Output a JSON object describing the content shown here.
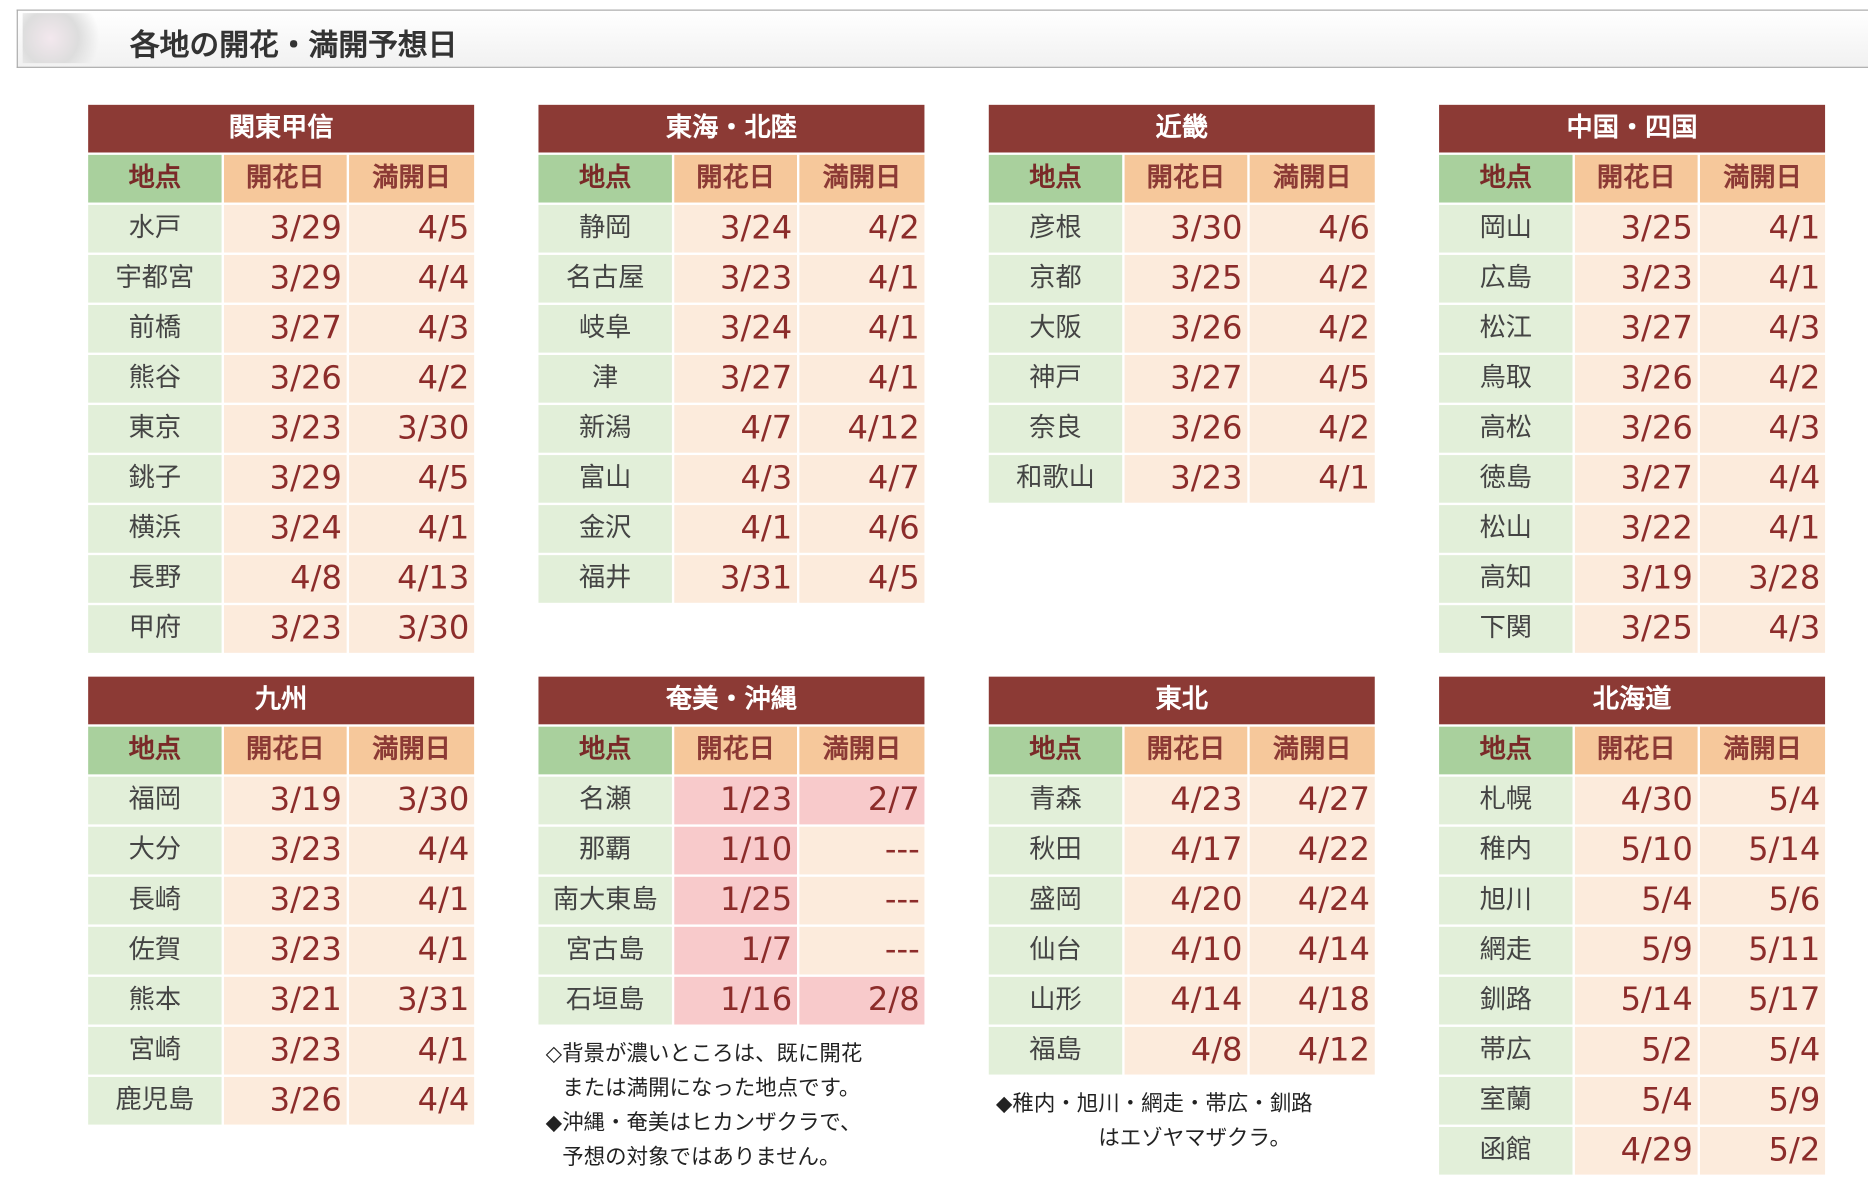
{
  "header": {
    "title": "各地の開花・満開予想日"
  },
  "columns": [
    "地点",
    "開花日",
    "満開日"
  ],
  "regions": [
    {
      "name": "関東甲信",
      "rows": [
        [
          "水戸",
          "3/29",
          "4/5"
        ],
        [
          "宇都宮",
          "3/29",
          "4/4"
        ],
        [
          "前橋",
          "3/27",
          "4/3"
        ],
        [
          "熊谷",
          "3/26",
          "4/2"
        ],
        [
          "東京",
          "3/23",
          "3/30"
        ],
        [
          "銚子",
          "3/29",
          "4/5"
        ],
        [
          "横浜",
          "3/24",
          "4/1"
        ],
        [
          "長野",
          "4/8",
          "4/13"
        ],
        [
          "甲府",
          "3/23",
          "3/30"
        ]
      ]
    },
    {
      "name": "東海・北陸",
      "rows": [
        [
          "静岡",
          "3/24",
          "4/2"
        ],
        [
          "名古屋",
          "3/23",
          "4/1"
        ],
        [
          "岐阜",
          "3/24",
          "4/1"
        ],
        [
          "津",
          "3/27",
          "4/1"
        ],
        [
          "新潟",
          "4/7",
          "4/12"
        ],
        [
          "富山",
          "4/3",
          "4/7"
        ],
        [
          "金沢",
          "4/1",
          "4/6"
        ],
        [
          "福井",
          "3/31",
          "4/5"
        ]
      ]
    },
    {
      "name": "近畿",
      "rows": [
        [
          "彦根",
          "3/30",
          "4/6"
        ],
        [
          "京都",
          "3/25",
          "4/2"
        ],
        [
          "大阪",
          "3/26",
          "4/2"
        ],
        [
          "神戸",
          "3/27",
          "4/5"
        ],
        [
          "奈良",
          "3/26",
          "4/2"
        ],
        [
          "和歌山",
          "3/23",
          "4/1"
        ]
      ]
    },
    {
      "name": "中国・四国",
      "rows": [
        [
          "岡山",
          "3/25",
          "4/1"
        ],
        [
          "広島",
          "3/23",
          "4/1"
        ],
        [
          "松江",
          "3/27",
          "4/3"
        ],
        [
          "鳥取",
          "3/26",
          "4/2"
        ],
        [
          "高松",
          "3/26",
          "4/3"
        ],
        [
          "徳島",
          "3/27",
          "4/4"
        ],
        [
          "松山",
          "3/22",
          "4/1"
        ],
        [
          "高知",
          "3/19",
          "3/28"
        ],
        [
          "下関",
          "3/25",
          "4/3"
        ]
      ]
    },
    {
      "name": "九州",
      "rows": [
        [
          "福岡",
          "3/19",
          "3/30"
        ],
        [
          "大分",
          "3/23",
          "4/4"
        ],
        [
          "長崎",
          "3/23",
          "4/1"
        ],
        [
          "佐賀",
          "3/23",
          "4/1"
        ],
        [
          "熊本",
          "3/21",
          "3/31"
        ],
        [
          "宮崎",
          "3/23",
          "4/1"
        ],
        [
          "鹿児島",
          "3/26",
          "4/4"
        ]
      ]
    },
    {
      "name": "奄美・沖縄",
      "rows": [
        [
          "名瀬",
          "1/23",
          "2/7"
        ],
        [
          "那覇",
          "1/10",
          "---"
        ],
        [
          "南大東島",
          "1/25",
          "---"
        ],
        [
          "宮古島",
          "1/7",
          "---"
        ],
        [
          "石垣島",
          "1/16",
          "2/8"
        ]
      ],
      "highlight": [
        [
          true,
          true
        ],
        [
          true,
          false
        ],
        [
          true,
          false
        ],
        [
          true,
          false
        ],
        [
          true,
          true
        ]
      ],
      "note": [
        "◇背景が濃いところは、既に開花",
        "または満開になった地点です。",
        "◆沖縄・奄美はヒカンザクラで、",
        "予想の対象ではありません。"
      ]
    },
    {
      "name": "東北",
      "rows": [
        [
          "青森",
          "4/23",
          "4/27"
        ],
        [
          "秋田",
          "4/17",
          "4/22"
        ],
        [
          "盛岡",
          "4/20",
          "4/24"
        ],
        [
          "仙台",
          "4/10",
          "4/14"
        ],
        [
          "山形",
          "4/14",
          "4/18"
        ],
        [
          "福島",
          "4/8",
          "4/12"
        ]
      ],
      "note": [
        "◆稚内・旭川・網走・帯広・釧路",
        "はエゾヤマザクラ。"
      ]
    },
    {
      "name": "北海道",
      "rows": [
        [
          "札幌",
          "4/30",
          "5/4"
        ],
        [
          "稚内",
          "5/10",
          "5/14"
        ],
        [
          "旭川",
          "5/4",
          "5/6"
        ],
        [
          "網走",
          "5/9",
          "5/11"
        ],
        [
          "釧路",
          "5/14",
          "5/17"
        ],
        [
          "帯広",
          "5/2",
          "5/4"
        ],
        [
          "室蘭",
          "5/4",
          "5/9"
        ],
        [
          "函館",
          "4/29",
          "5/2"
        ]
      ]
    }
  ]
}
